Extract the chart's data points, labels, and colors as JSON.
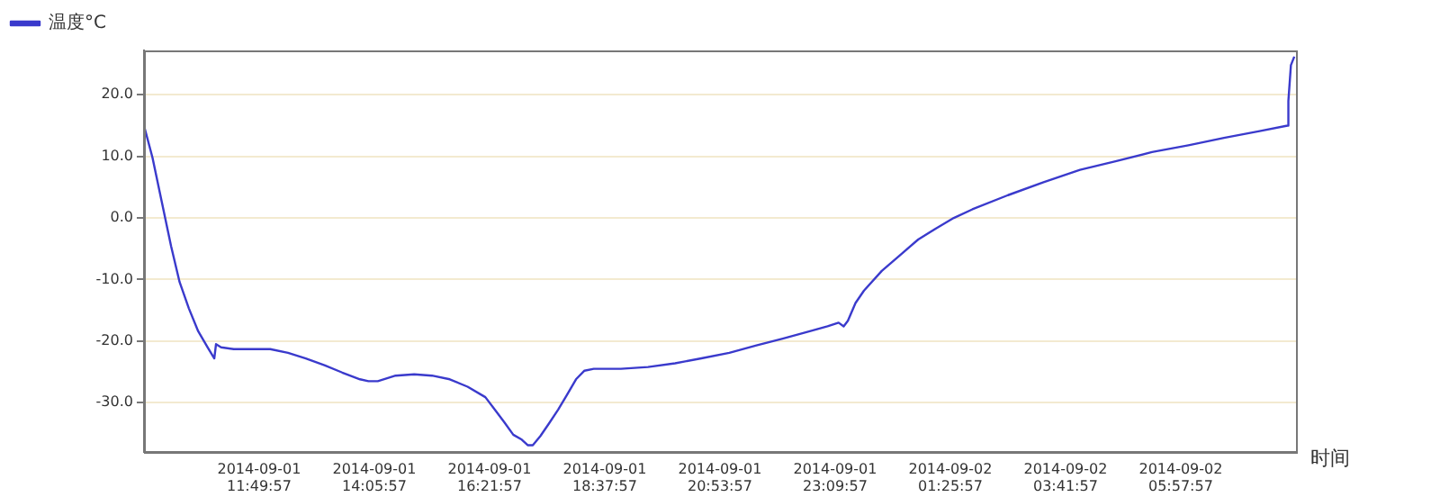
{
  "chart_data": {
    "type": "line",
    "xlabel": "时间",
    "legend": "top left",
    "grid": "y",
    "marker": "none",
    "line_style": "solid",
    "xlim": [
      "2014-09-01T09:34",
      "2014-09-02T08:14"
    ],
    "ylim": [
      -38,
      27.2
    ],
    "yticks": [
      {
        "value": -30,
        "label": "-30.0"
      },
      {
        "value": -20,
        "label": "-20.0"
      },
      {
        "value": -10,
        "label": "-10.0"
      },
      {
        "value": 0,
        "label": "0.0"
      },
      {
        "value": 10,
        "label": "10.0"
      },
      {
        "value": 20,
        "label": "20.0"
      }
    ],
    "xticks": [
      {
        "value": "2014-09-01T11:49:57",
        "label": "2014-09-01 11:49:57"
      },
      {
        "value": "2014-09-01T14:05:57",
        "label": "2014-09-01 14:05:57"
      },
      {
        "value": "2014-09-01T16:21:57",
        "label": "2014-09-01 16:21:57"
      },
      {
        "value": "2014-09-01T18:37:57",
        "label": "2014-09-01 18:37:57"
      },
      {
        "value": "2014-09-01T20:53:57",
        "label": "2014-09-01 20:53:57"
      },
      {
        "value": "2014-09-01T23:09:57",
        "label": "2014-09-01 23:09:57"
      },
      {
        "value": "2014-09-02T01:25:57",
        "label": "2014-09-02 01:25:57"
      },
      {
        "value": "2014-09-02T03:41:57",
        "label": "2014-09-02 03:41:57"
      },
      {
        "value": "2014-09-02T05:57:57",
        "label": "2014-09-02 05:57:57"
      }
    ],
    "series": [
      {
        "name": "温度°C",
        "color": "#3a3acc",
        "x": [
          "2014-09-01T09:34",
          "2014-09-01T09:44",
          "2014-09-01T09:55",
          "2014-09-01T10:06",
          "2014-09-01T10:16",
          "2014-09-01T10:27",
          "2014-09-01T10:38",
          "2014-09-01T10:49",
          "2014-09-01T10:57",
          "2014-09-01T10:59",
          "2014-09-01T11:05",
          "2014-09-01T11:20",
          "2014-09-01T12:03",
          "2014-09-01T12:24",
          "2014-09-01T12:45",
          "2014-09-01T13:07",
          "2014-09-01T13:28",
          "2014-09-01T13:49",
          "2014-09-01T13:59",
          "2014-09-01T14:10",
          "2014-09-01T14:31",
          "2014-09-01T14:53",
          "2014-09-01T15:14",
          "2014-09-01T15:35",
          "2014-09-01T15:56",
          "2014-09-01T16:17",
          "2014-09-01T16:28",
          "2014-09-01T16:39",
          "2014-09-01T16:50",
          "2014-09-01T17:00",
          "2014-09-01T17:07",
          "2014-09-01T17:13",
          "2014-09-01T17:22",
          "2014-09-01T17:32",
          "2014-09-01T17:43",
          "2014-09-01T17:53",
          "2014-09-01T18:04",
          "2014-09-01T18:14",
          "2014-09-01T18:25",
          "2014-09-01T18:57",
          "2014-09-01T19:29",
          "2014-09-01T20:01",
          "2014-09-01T20:32",
          "2014-09-01T21:05",
          "2014-09-01T21:37",
          "2014-09-01T22:08",
          "2014-09-01T22:40",
          "2014-09-01T23:01",
          "2014-09-01T23:14",
          "2014-09-01T23:20",
          "2014-09-01T23:25",
          "2014-09-01T23:34",
          "2014-09-01T23:44",
          "2014-09-02T00:05",
          "2014-09-02T00:26",
          "2014-09-02T00:48",
          "2014-09-02T01:09",
          "2014-09-02T01:30",
          "2014-09-02T01:52",
          "2014-09-02T02:34",
          "2014-09-02T03:16",
          "2014-09-02T03:59",
          "2014-09-02T04:41",
          "2014-09-02T05:24",
          "2014-09-02T06:07",
          "2014-09-02T06:49",
          "2014-09-02T07:31",
          "2014-09-02T08:04",
          "2014-09-02T08:05",
          "2014-09-02T08:08",
          "2014-09-02T08:12"
        ],
        "values": [
          15.0,
          9.8,
          2.6,
          -4.6,
          -10.4,
          -14.7,
          -18.4,
          -21.0,
          -22.8,
          -20.5,
          -21.0,
          -21.3,
          -21.3,
          -21.9,
          -22.8,
          -23.9,
          -25.1,
          -26.2,
          -26.5,
          -26.5,
          -25.6,
          -25.4,
          -25.6,
          -26.2,
          -27.4,
          -29.1,
          -31.1,
          -33.1,
          -35.2,
          -36.0,
          -36.9,
          -36.9,
          -35.4,
          -33.4,
          -31.1,
          -28.8,
          -26.2,
          -24.8,
          -24.5,
          -24.5,
          -24.2,
          -23.6,
          -22.8,
          -21.9,
          -20.7,
          -19.6,
          -18.4,
          -17.6,
          -17.0,
          -17.6,
          -16.7,
          -13.8,
          -11.8,
          -8.6,
          -6.1,
          -3.5,
          -1.7,
          0,
          1.4,
          3.7,
          5.8,
          7.8,
          9.2,
          10.7,
          11.8,
          13.0,
          14.1,
          15.0,
          19.0,
          24.8,
          26.2
        ]
      }
    ]
  }
}
